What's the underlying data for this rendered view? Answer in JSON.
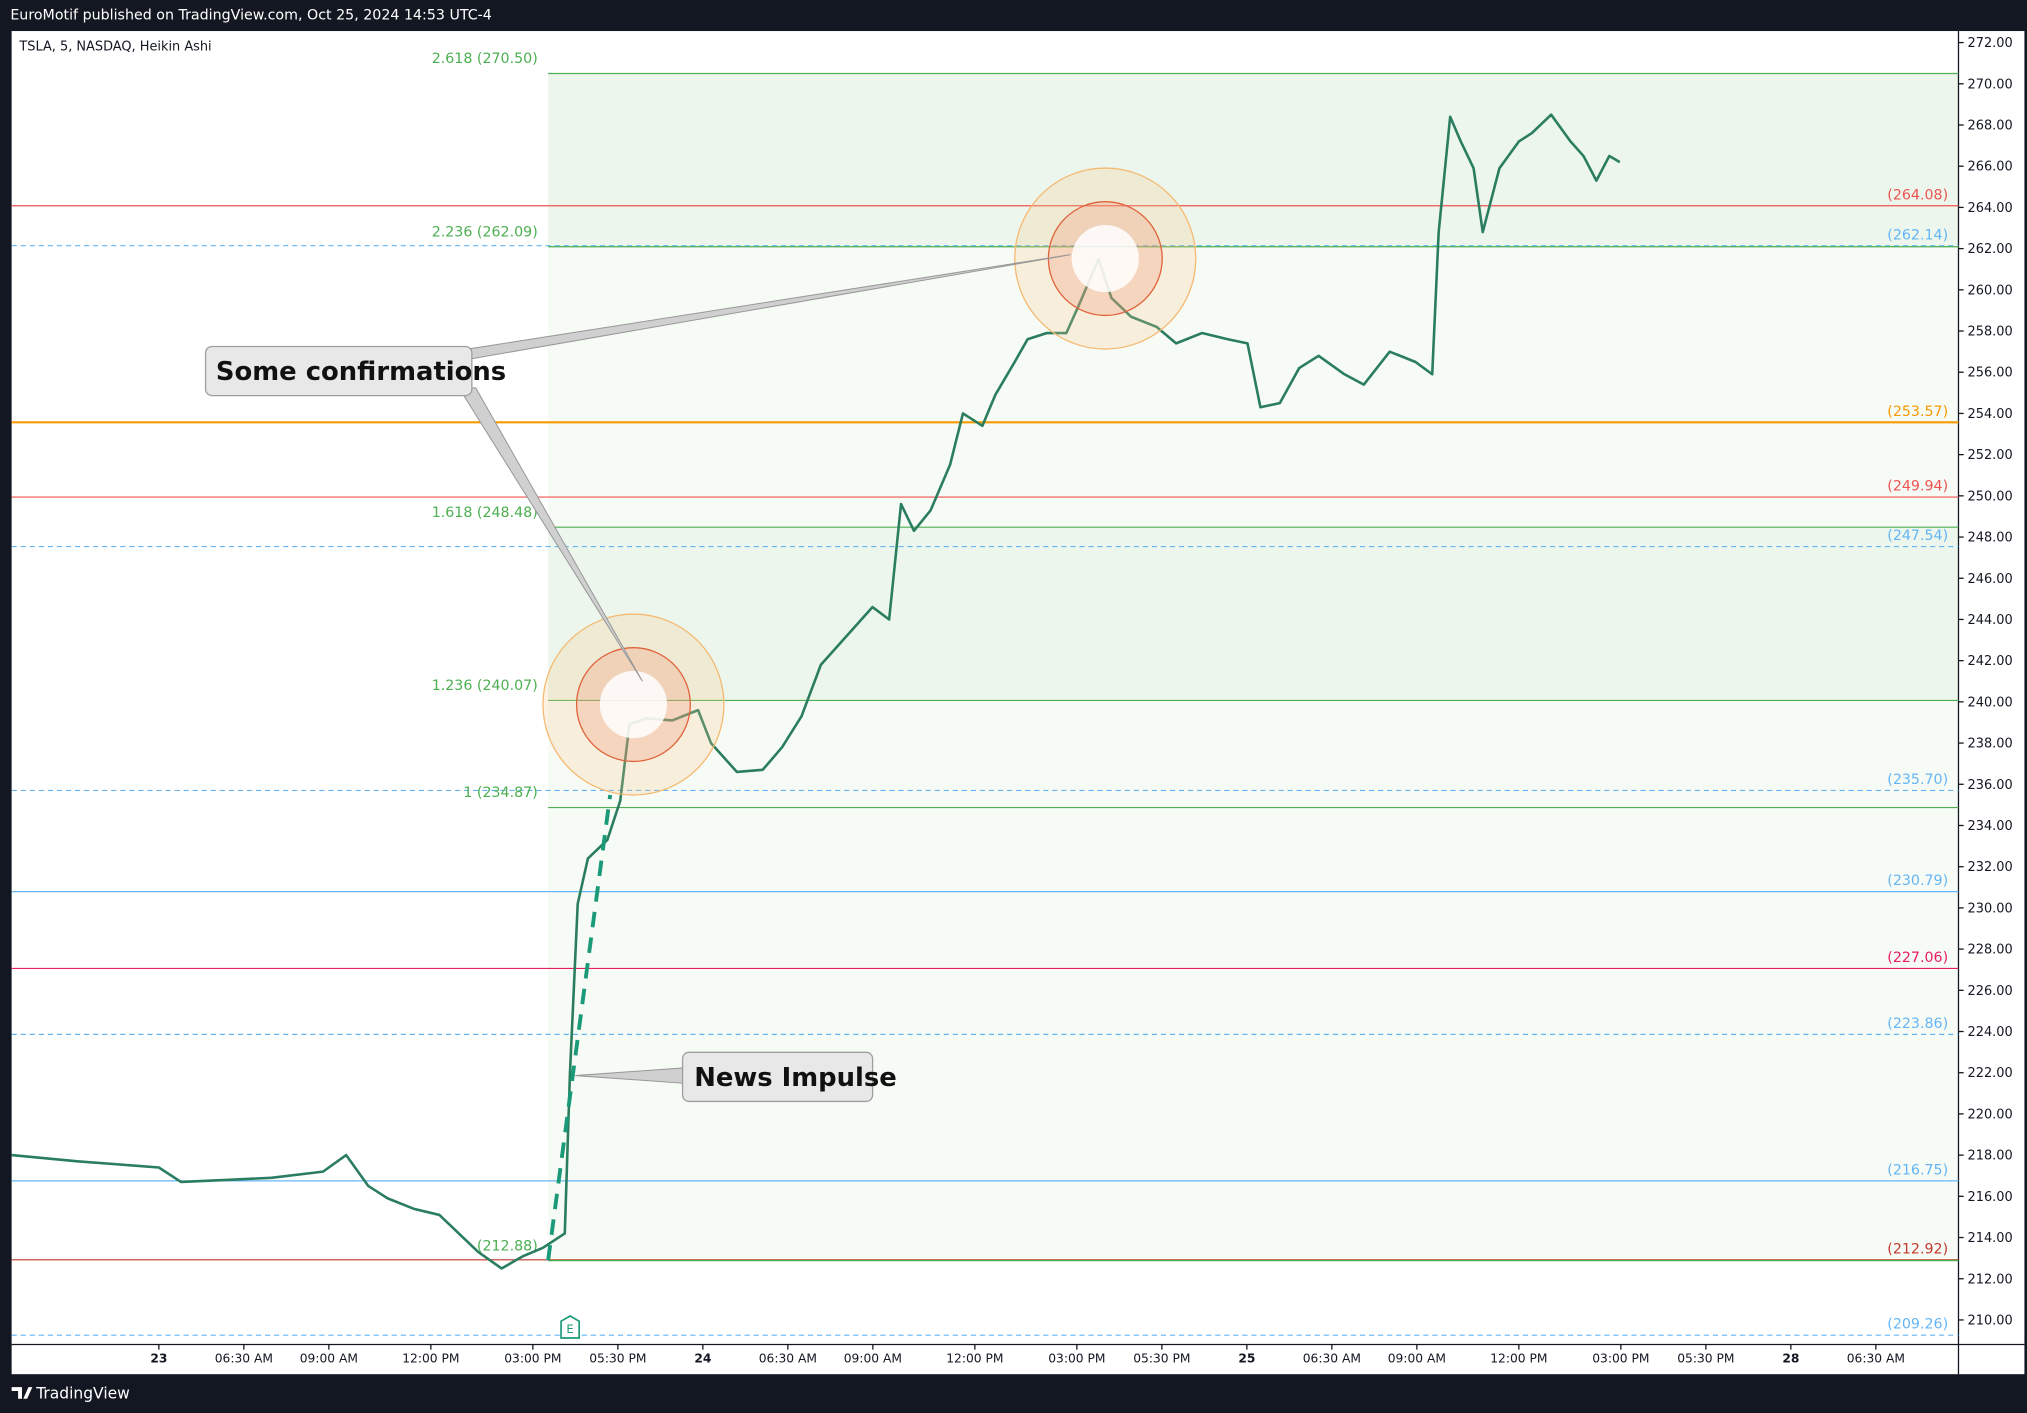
{
  "header": {
    "publisher": "EuroMotif published on TradingView.com, Oct 25, 2024 14:53 UTC-4"
  },
  "footer": {
    "brand": "TradingView"
  },
  "chart_data": {
    "type": "line",
    "title": "TSLA, 5, NASDAQ, Heikin Ashi",
    "color": "#2a7d5f",
    "x": [
      -4.33,
      -2.4,
      0,
      0.65,
      1.98,
      3.31,
      4.83,
      5.51,
      6.16,
      6.73,
      7.49,
      8.25,
      8.82,
      9.39,
      10.08,
      10.72,
      11.29,
      11.94,
      12.09,
      12.32,
      12.62,
      13.19,
      13.57,
      13.84,
      14.33,
      15.1,
      15.86,
      16.24,
      17.0,
      17.76,
      18.33,
      18.9,
      19.47,
      20.23,
      20.99,
      21.48,
      21.83,
      22.21,
      22.7,
      23.27,
      23.65,
      24.22,
      24.6,
      25.17,
      25.55,
      26.12,
      26.69,
      27.07,
      27.64,
      28.02,
      28.59,
      29.35,
      29.92,
      30.68,
      31.44,
      32.02,
      32.4,
      32.97,
      33.54,
      34.11,
      34.87,
      35.44,
      36.2,
      36.96,
      37.45,
      37.64,
      37.98,
      38.29,
      38.67,
      38.94,
      39.43,
      40.0,
      40.38,
      40.95,
      41.52,
      41.9,
      42.28,
      42.66,
      42.97
    ],
    "values": [
      218.0,
      217.7,
      217.4,
      216.7,
      216.8,
      216.9,
      217.2,
      218.0,
      216.5,
      215.9,
      215.4,
      215.1,
      214.2,
      213.3,
      212.5,
      213.1,
      213.5,
      214.2,
      222.0,
      230.2,
      232.4,
      233.3,
      235.2,
      238.9,
      239.2,
      239.1,
      239.6,
      238.0,
      236.6,
      236.7,
      237.8,
      239.3,
      241.8,
      243.2,
      244.6,
      244.0,
      249.6,
      248.3,
      249.3,
      251.5,
      254.0,
      253.4,
      254.9,
      256.5,
      257.6,
      257.9,
      257.9,
      259.3,
      261.5,
      259.6,
      258.7,
      258.2,
      257.4,
      257.9,
      257.6,
      257.4,
      254.3,
      254.5,
      256.2,
      256.8,
      255.9,
      255.4,
      257.0,
      256.5,
      255.9,
      262.8,
      268.4,
      267.2,
      265.9,
      262.8,
      265.9,
      267.2,
      267.6,
      268.5,
      267.2,
      266.5,
      265.3,
      266.5,
      266.2
    ],
    "xlim": [
      -4.33,
      52.93
    ],
    "ylim": [
      208.81,
      272.56
    ],
    "xticks": [
      {
        "value": 0,
        "label": "23"
      },
      {
        "value": 2.5,
        "label": "06:30 AM"
      },
      {
        "value": 5,
        "label": "09:00 AM"
      },
      {
        "value": 8,
        "label": "12:00 PM"
      },
      {
        "value": 11,
        "label": "03:00 PM"
      },
      {
        "value": 13.5,
        "label": "05:30 PM"
      },
      {
        "value": 16,
        "label": "24"
      },
      {
        "value": 18.5,
        "label": "06:30 AM"
      },
      {
        "value": 21,
        "label": "09:00 AM"
      },
      {
        "value": 24,
        "label": "12:00 PM"
      },
      {
        "value": 27,
        "label": "03:00 PM"
      },
      {
        "value": 29.5,
        "label": "05:30 PM"
      },
      {
        "value": 32,
        "label": "25"
      },
      {
        "value": 34.5,
        "label": "06:30 AM"
      },
      {
        "value": 37,
        "label": "09:00 AM"
      },
      {
        "value": 40,
        "label": "12:00 PM"
      },
      {
        "value": 43,
        "label": "03:00 PM"
      },
      {
        "value": 45.5,
        "label": "05:30 PM"
      },
      {
        "value": 48,
        "label": "28"
      },
      {
        "value": 50.5,
        "label": "06:30 AM"
      }
    ],
    "yticks": [
      {
        "value": 210,
        "label": "210.00"
      },
      {
        "value": 212,
        "label": "212.00"
      },
      {
        "value": 214,
        "label": "214.00"
      },
      {
        "value": 216,
        "label": "216.00"
      },
      {
        "value": 218,
        "label": "218.00"
      },
      {
        "value": 220,
        "label": "220.00"
      },
      {
        "value": 222,
        "label": "222.00"
      },
      {
        "value": 224,
        "label": "224.00"
      },
      {
        "value": 226,
        "label": "226.00"
      },
      {
        "value": 228,
        "label": "228.00"
      },
      {
        "value": 230,
        "label": "230.00"
      },
      {
        "value": 232,
        "label": "232.00"
      },
      {
        "value": 234,
        "label": "234.00"
      },
      {
        "value": 236,
        "label": "236.00"
      },
      {
        "value": 238,
        "label": "238.00"
      },
      {
        "value": 240,
        "label": "240.00"
      },
      {
        "value": 242,
        "label": "242.00"
      },
      {
        "value": 244,
        "label": "244.00"
      },
      {
        "value": 246,
        "label": "246.00"
      },
      {
        "value": 248,
        "label": "248.00"
      },
      {
        "value": 250,
        "label": "250.00"
      },
      {
        "value": 252,
        "label": "252.00"
      },
      {
        "value": 254,
        "label": "254.00"
      },
      {
        "value": 256,
        "label": "256.00"
      },
      {
        "value": 258,
        "label": "258.00"
      },
      {
        "value": 260,
        "label": "260.00"
      },
      {
        "value": 262,
        "label": "262.00"
      },
      {
        "value": 264,
        "label": "264.00"
      },
      {
        "value": 266,
        "label": "266.00"
      },
      {
        "value": 268,
        "label": "268.00"
      },
      {
        "value": 270,
        "label": "270.00"
      },
      {
        "value": 272,
        "label": "272.00"
      }
    ],
    "levels": [
      {
        "value": 264.08,
        "label": "(264.08)",
        "color": "#ef5350",
        "style": "solid"
      },
      {
        "value": 262.14,
        "label": "(262.14)",
        "color": "#64b5f6",
        "style": "dashed"
      },
      {
        "value": 253.57,
        "label": "(253.57)",
        "color": "#f59a00",
        "style": "thick"
      },
      {
        "value": 249.94,
        "label": "(249.94)",
        "color": "#ef5350",
        "style": "solid"
      },
      {
        "value": 247.54,
        "label": "(247.54)",
        "color": "#64b5f6",
        "style": "dashed"
      },
      {
        "value": 235.7,
        "label": "(235.70)",
        "color": "#64b5f6",
        "style": "dashed"
      },
      {
        "value": 230.79,
        "label": "(230.79)",
        "color": "#64b5f6",
        "style": "solid"
      },
      {
        "value": 227.06,
        "label": "(227.06)",
        "color": "#e91e63",
        "style": "solid"
      },
      {
        "value": 223.86,
        "label": "(223.86)",
        "color": "#64b5f6",
        "style": "dashed"
      },
      {
        "value": 216.75,
        "label": "(216.75)",
        "color": "#64b5f6",
        "style": "solid"
      },
      {
        "value": 212.92,
        "label": "(212.92)",
        "color": "#c0392b",
        "style": "solid"
      },
      {
        "value": 209.26,
        "label": "(209.26)",
        "color": "#64b5f6",
        "style": "dashed"
      }
    ],
    "fib_color": "#4caf50",
    "fib_levels": [
      {
        "value": 270.5,
        "label": "2.618 (270.50)"
      },
      {
        "value": 262.09,
        "label": "2.236 (262.09)"
      },
      {
        "value": 248.48,
        "label": "1.618 (248.48)"
      },
      {
        "value": 240.07,
        "label": "1.236 (240.07)"
      },
      {
        "value": 234.87,
        "label": "1 (234.87)"
      },
      {
        "value": 212.88,
        "label": "(212.88)"
      }
    ],
    "annotations": [
      "Some confirmations",
      "News Impulse"
    ],
    "event_marker": "E"
  }
}
